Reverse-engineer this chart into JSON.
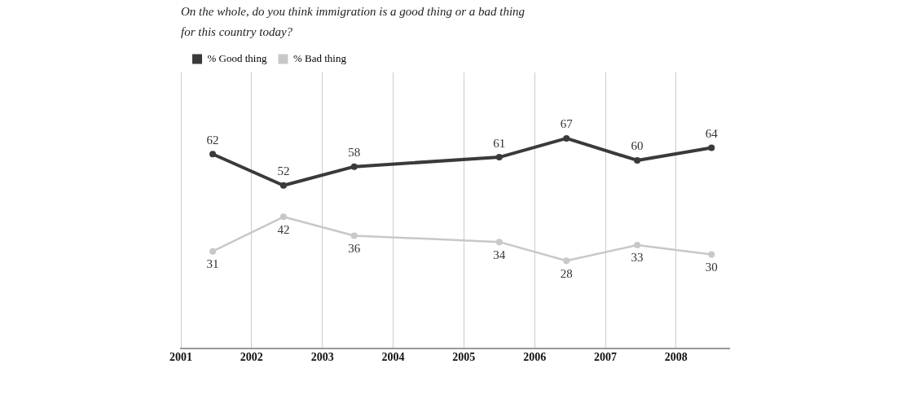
{
  "chart_data": {
    "type": "line",
    "title": "On the whole, do you think immigration is a good thing or a bad thing for this country today?",
    "x": [
      2001.45,
      2002.45,
      2003.45,
      2005.5,
      2006.45,
      2007.45,
      2008.5
    ],
    "series": [
      {
        "name": "% Good thing",
        "color": "#3a3a3a",
        "values": [
          62,
          52,
          58,
          61,
          67,
          60,
          64
        ]
      },
      {
        "name": "% Bad thing",
        "color": "#c8c8c8",
        "values": [
          31,
          42,
          36,
          34,
          28,
          33,
          30
        ]
      }
    ],
    "xlim": [
      2001,
      2008.75
    ],
    "xticks": [
      2001,
      2002,
      2003,
      2004,
      2005,
      2006,
      2007,
      2008
    ],
    "ylim": [
      0,
      88
    ],
    "tick_labels": "x",
    "grid": "x",
    "legend": "top left",
    "marker": "circle",
    "line_style": "solid",
    "data_labels": true
  }
}
